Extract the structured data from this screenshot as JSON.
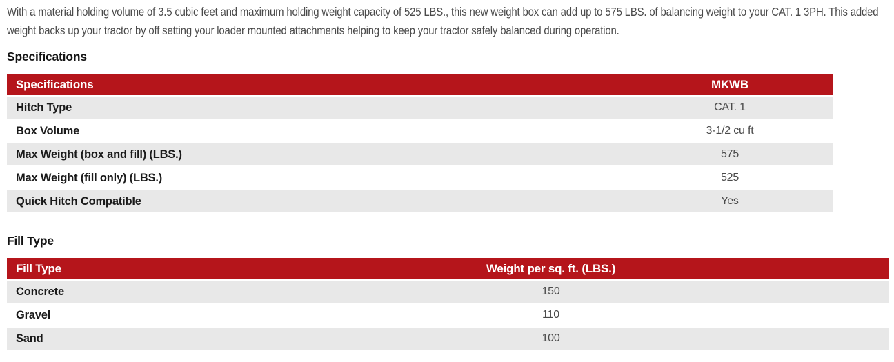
{
  "colors": {
    "accent_red": "#b5151b",
    "row_gray": "#e8e8e8",
    "body_text": "#4a4a4a",
    "heading_text": "#141414"
  },
  "intro_paragraph": "With a material holding volume of 3.5 cubic feet and maximum holding weight capacity of 525 LBS., this new weight box can add up to 575 LBS. of balancing weight to your CAT. 1 3PH. This added weight backs up your tractor by off setting your loader mounted attachments helping to keep your tractor safely balanced during operation.",
  "specifications_section": {
    "heading": "Specifications",
    "table": {
      "header_label": "Specifications",
      "header_value": "MKWB",
      "rows": [
        {
          "label": "Hitch Type",
          "value": "CAT. 1"
        },
        {
          "label": "Box Volume",
          "value": "3-1/2 cu ft"
        },
        {
          "label": "Max Weight (box and fill) (LBS.)",
          "value": "575"
        },
        {
          "label": "Max Weight (fill only) (LBS.)",
          "value": "525"
        },
        {
          "label": "Quick Hitch Compatible",
          "value": "Yes"
        }
      ]
    }
  },
  "fill_type_section": {
    "heading": "Fill Type",
    "table": {
      "header_label": "Fill Type",
      "header_value": "Weight per sq. ft. (LBS.)",
      "rows": [
        {
          "label": "Concrete",
          "value": "150"
        },
        {
          "label": "Gravel",
          "value": "110"
        },
        {
          "label": "Sand",
          "value": "100"
        }
      ]
    }
  }
}
